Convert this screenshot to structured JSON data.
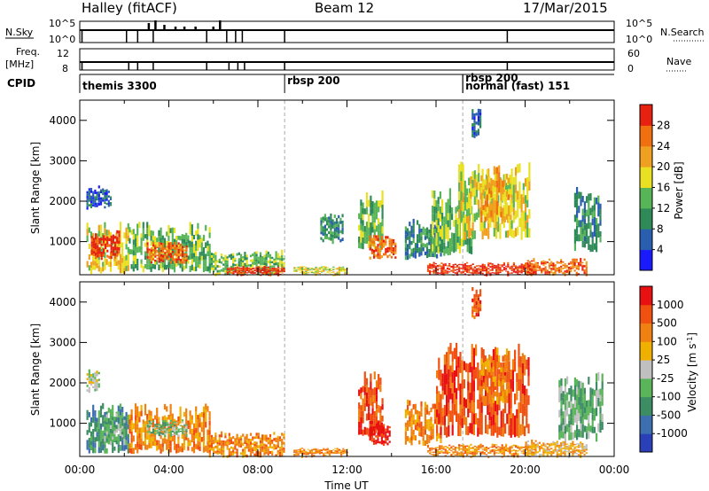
{
  "header": {
    "radar": "Halley (fitACF)",
    "beam": "Beam 12",
    "date": "17/Mar/2015"
  },
  "strips": {
    "nsky_label": "N.Sky",
    "nsky_ticks": [
      "10^5",
      "10^0"
    ],
    "nsearch_label": "N.Search",
    "nsearch_ticks": [
      "10^5",
      "10^0"
    ],
    "freq_label_1": "Freq.",
    "freq_label_2": "[MHz]",
    "freq_ticks": [
      "12",
      "8"
    ],
    "nave_label": "Nave",
    "nave_ticks": [
      "60",
      "0"
    ],
    "cpid_label": "CPID",
    "cpid_modes": [
      {
        "text": "themis 3300",
        "start": 0
      },
      {
        "text": "rbsp 200",
        "start": 9.2
      },
      {
        "text": "rbsp 200",
        "start": 17.2
      },
      {
        "text": "normal (fast) 151",
        "start": 17.2
      }
    ]
  },
  "chart_data": [
    {
      "type": "heatmap",
      "title": "Power",
      "ylabel": "Slant Range [km]",
      "xlabel": "",
      "xlim": [
        0,
        24
      ],
      "ylim": [
        180,
        4500
      ],
      "yticks": [
        "1000",
        "2000",
        "3000",
        "4000"
      ],
      "colorbar": {
        "label": "Power [dB]",
        "ticks": [
          "4",
          "8",
          "12",
          "16",
          "20",
          "24",
          "28"
        ],
        "colors": [
          "#1a1aff",
          "#2a5fb0",
          "#2e8b57",
          "#57b557",
          "#e8e020",
          "#f0a020",
          "#f07010",
          "#e82010"
        ]
      },
      "regions": [
        {
          "t0": 0.3,
          "t1": 1.4,
          "r0": 1850,
          "r1": 2400,
          "level": 1
        },
        {
          "t0": 0.3,
          "t1": 2.2,
          "r0": 250,
          "r1": 1500,
          "level": 4
        },
        {
          "t0": 0.5,
          "t1": 1.8,
          "r0": 600,
          "r1": 1300,
          "level": 7
        },
        {
          "t0": 2.2,
          "t1": 5.8,
          "r0": 300,
          "r1": 1500,
          "level": 3
        },
        {
          "t0": 3.0,
          "t1": 4.8,
          "r0": 500,
          "r1": 1000,
          "level": 6
        },
        {
          "t0": 5.8,
          "t1": 9.2,
          "r0": 200,
          "r1": 800,
          "level": 3
        },
        {
          "t0": 6.6,
          "t1": 9.2,
          "r0": 200,
          "r1": 400,
          "level": 7
        },
        {
          "t0": 9.6,
          "t1": 12.0,
          "r0": 200,
          "r1": 400,
          "level": 4
        },
        {
          "t0": 10.8,
          "t1": 11.8,
          "r0": 1000,
          "r1": 1700,
          "level": 2
        },
        {
          "t0": 12.5,
          "t1": 13.6,
          "r0": 800,
          "r1": 2300,
          "level": 3
        },
        {
          "t0": 13.0,
          "t1": 14.2,
          "r0": 600,
          "r1": 1200,
          "level": 6
        },
        {
          "t0": 14.6,
          "t1": 16.2,
          "r0": 600,
          "r1": 1600,
          "level": 2
        },
        {
          "t0": 15.6,
          "t1": 20.5,
          "r0": 200,
          "r1": 500,
          "level": 7
        },
        {
          "t0": 15.8,
          "t1": 17.6,
          "r0": 700,
          "r1": 2400,
          "level": 3
        },
        {
          "t0": 17.0,
          "t1": 20.2,
          "r0": 1100,
          "r1": 3000,
          "level": 4
        },
        {
          "t0": 18.0,
          "t1": 19.4,
          "r0": 1500,
          "r1": 2900,
          "level": 5
        },
        {
          "t0": 17.6,
          "t1": 18.0,
          "r0": 3600,
          "r1": 4400,
          "level": 1
        },
        {
          "t0": 20.0,
          "t1": 22.8,
          "r0": 200,
          "r1": 600,
          "level": 6
        },
        {
          "t0": 22.2,
          "t1": 23.4,
          "r0": 800,
          "r1": 2400,
          "level": 2
        }
      ]
    },
    {
      "type": "heatmap",
      "title": "Velocity",
      "ylabel": "Slant Range [km]",
      "xlabel": "Time UT",
      "xlim": [
        0,
        24
      ],
      "ylim": [
        180,
        4500
      ],
      "yticks": [
        "1000",
        "2000",
        "3000",
        "4000"
      ],
      "xticks": [
        "00:00",
        "04:00",
        "08:00",
        "12:00",
        "16:00",
        "20:00",
        "00:00"
      ],
      "colorbar": {
        "label": "Velocity [m s^-1]",
        "ticks": [
          "1000",
          "500",
          "100",
          "25",
          "-25",
          "-100",
          "-500",
          "-1000"
        ],
        "colors": [
          "#2a40b8",
          "#3c6eb0",
          "#3c8c64",
          "#5ab45a",
          "#c0c0c0",
          "#f0b000",
          "#f08010",
          "#f05010",
          "#e81010"
        ]
      },
      "regions": [
        {
          "t0": 0.3,
          "t1": 0.9,
          "r0": 1800,
          "r1": 2400,
          "level": 4
        },
        {
          "t0": 0.3,
          "t1": 2.2,
          "r0": 300,
          "r1": 1500,
          "level": 2
        },
        {
          "t0": 1.0,
          "t1": 2.0,
          "r0": 500,
          "r1": 1300,
          "level": 3
        },
        {
          "t0": 2.2,
          "t1": 5.8,
          "r0": 300,
          "r1": 1500,
          "level": 6
        },
        {
          "t0": 3.0,
          "t1": 4.8,
          "r0": 700,
          "r1": 1100,
          "level": 3
        },
        {
          "t0": 5.8,
          "t1": 9.2,
          "r0": 200,
          "r1": 800,
          "level": 6
        },
        {
          "t0": 9.6,
          "t1": 12.0,
          "r0": 200,
          "r1": 400,
          "level": 6
        },
        {
          "t0": 12.5,
          "t1": 13.6,
          "r0": 700,
          "r1": 2300,
          "level": 7
        },
        {
          "t0": 13.0,
          "t1": 13.9,
          "r0": 500,
          "r1": 1100,
          "level": 8
        },
        {
          "t0": 14.6,
          "t1": 16.2,
          "r0": 500,
          "r1": 1600,
          "level": 6
        },
        {
          "t0": 15.6,
          "t1": 20.5,
          "r0": 200,
          "r1": 500,
          "level": 6
        },
        {
          "t0": 16.0,
          "t1": 20.2,
          "r0": 700,
          "r1": 3000,
          "level": 7
        },
        {
          "t0": 18.0,
          "t1": 19.2,
          "r0": 1500,
          "r1": 2900,
          "level": 6
        },
        {
          "t0": 17.6,
          "t1": 18.0,
          "r0": 3600,
          "r1": 4400,
          "level": 7
        },
        {
          "t0": 20.0,
          "t1": 22.8,
          "r0": 200,
          "r1": 600,
          "level": 5
        },
        {
          "t0": 21.5,
          "t1": 23.5,
          "r0": 600,
          "r1": 2300,
          "level": 3
        }
      ]
    }
  ]
}
